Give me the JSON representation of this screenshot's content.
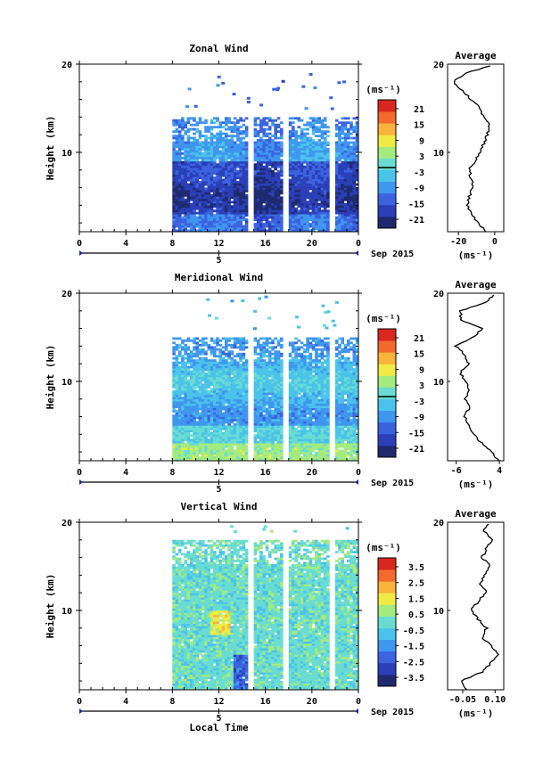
{
  "panels": [
    {
      "title": "Zonal Wind",
      "ylabel": "Height (km)",
      "y_ticks": [
        "20",
        "10"
      ],
      "x_ticks": [
        "0",
        "4",
        "8",
        "12",
        "16",
        "20",
        "0"
      ],
      "date_label": "Sep 2015",
      "day_marker": "5",
      "cbar_unit": "(ms⁻¹)",
      "cbar_ticks": [
        "21",
        "15",
        "9",
        "3",
        "-3",
        "-9",
        "-15",
        "-21"
      ],
      "avg_title": "Average",
      "avg_ticks": [
        "-20",
        "0"
      ],
      "avg_unit": "(ms⁻¹)"
    },
    {
      "title": "Meridional Wind",
      "ylabel": "Height (km)",
      "y_ticks": [
        "20",
        "10"
      ],
      "x_ticks": [
        "0",
        "4",
        "8",
        "12",
        "16",
        "20",
        "0"
      ],
      "date_label": "Sep 2015",
      "day_marker": "5",
      "cbar_unit": "(ms⁻¹)",
      "cbar_ticks": [
        "21",
        "15",
        "9",
        "3",
        "-3",
        "-9",
        "-15",
        "-21"
      ],
      "avg_title": "Average",
      "avg_ticks": [
        "-6",
        "4"
      ],
      "avg_unit": "(ms⁻¹)"
    },
    {
      "title": "Vertical Wind",
      "ylabel": "Height (km)",
      "y_ticks": [
        "20",
        "10"
      ],
      "x_ticks": [
        "0",
        "4",
        "8",
        "12",
        "16",
        "20",
        "0"
      ],
      "date_label": "Sep 2015",
      "day_marker": "5",
      "cbar_unit": "(ms⁻¹)",
      "cbar_ticks": [
        "3.5",
        "2.5",
        "1.5",
        "0.5",
        "-0.5",
        "-1.5",
        "-2.5",
        "-3.5"
      ],
      "avg_title": "Average",
      "avg_ticks": [
        "-0.05",
        "0.10"
      ],
      "avg_unit": "(ms⁻¹)",
      "xlabel": "Local Time"
    }
  ],
  "chart_data": [
    {
      "type": "heatmap",
      "title": "Zonal Wind",
      "ylabel": "Height (km)",
      "xlabel": "Local Time",
      "x_range_hours": [
        0,
        24
      ],
      "ylim": [
        1,
        20
      ],
      "data_start_hour": 8,
      "gap_hours": [
        14.6,
        17.6,
        21.6
      ],
      "data_top_km_estimate": 14,
      "colorbar_range": [
        -24,
        24
      ],
      "colors": [
        "#1f2a6e",
        "#2a3fb8",
        "#3b63e0",
        "#3f96ef",
        "#4ac3ea",
        "#69dcd2",
        "#a3eb7e",
        "#f1ea45",
        "#f9b23a",
        "#f46a2d",
        "#d92720"
      ],
      "average_profile": {
        "x_range": [
          -26,
          5
        ],
        "height_km": [
          1,
          2,
          3,
          4,
          5,
          6,
          7,
          8,
          9,
          10,
          11,
          12,
          13,
          14,
          15,
          16,
          17,
          18,
          19,
          20
        ],
        "value": [
          -5,
          -9,
          -13,
          -15,
          -14,
          -12,
          -13,
          -14,
          -11,
          -8,
          -6,
          -4,
          -3,
          -6,
          -8,
          -13,
          -18,
          -23,
          -16,
          1
        ]
      }
    },
    {
      "type": "heatmap",
      "title": "Meridional Wind",
      "ylabel": "Height (km)",
      "xlabel": "Local Time",
      "x_range_hours": [
        0,
        24
      ],
      "ylim": [
        1,
        20
      ],
      "data_start_hour": 8,
      "gap_hours": [
        14.6,
        17.6,
        21.6
      ],
      "data_top_km_estimate": 15,
      "colorbar_range": [
        -24,
        24
      ],
      "colors": [
        "#1f2a6e",
        "#2a3fb8",
        "#3b63e0",
        "#3f96ef",
        "#4ac3ea",
        "#69dcd2",
        "#a3eb7e",
        "#f1ea45",
        "#f9b23a",
        "#f46a2d",
        "#d92720"
      ],
      "average_profile": {
        "x_range": [
          -8,
          5
        ],
        "height_km": [
          1,
          2,
          3,
          4,
          5,
          6,
          7,
          8,
          9,
          10,
          11,
          12,
          13,
          14,
          15,
          16,
          17,
          18,
          19,
          20
        ],
        "value": [
          4,
          2,
          0,
          -2,
          -3,
          -4,
          -3,
          -4,
          -3,
          -4,
          -5,
          -3,
          -4,
          -6,
          -2,
          0,
          -5,
          -5,
          1,
          3
        ]
      }
    },
    {
      "type": "heatmap",
      "title": "Vertical Wind",
      "ylabel": "Height (km)",
      "xlabel": "Local Time",
      "x_range_hours": [
        0,
        24
      ],
      "ylim": [
        1,
        20
      ],
      "data_start_hour": 8,
      "gap_hours": [
        14.6,
        17.6,
        21.6
      ],
      "data_top_km_estimate": 18,
      "colorbar_range": [
        -4,
        4
      ],
      "colors": [
        "#1f2a6e",
        "#2a3fb8",
        "#3b63e0",
        "#3f96ef",
        "#4ac3ea",
        "#69dcd2",
        "#a3eb7e",
        "#f1ea45",
        "#f9b23a",
        "#f46a2d",
        "#d92720"
      ],
      "average_profile": {
        "x_range": [
          -0.12,
          0.14
        ],
        "height_km": [
          1,
          2,
          3,
          4,
          5,
          6,
          7,
          8,
          9,
          10,
          11,
          12,
          13,
          14,
          15,
          16,
          17,
          18,
          19,
          20
        ],
        "value": [
          -0.03,
          -0.06,
          0.04,
          0.08,
          0.11,
          0.08,
          0.04,
          0.06,
          0.02,
          -0.01,
          0.02,
          0.06,
          0.03,
          0.05,
          0.08,
          0.04,
          0.06,
          0.09,
          0.05,
          0.07
        ]
      }
    }
  ]
}
